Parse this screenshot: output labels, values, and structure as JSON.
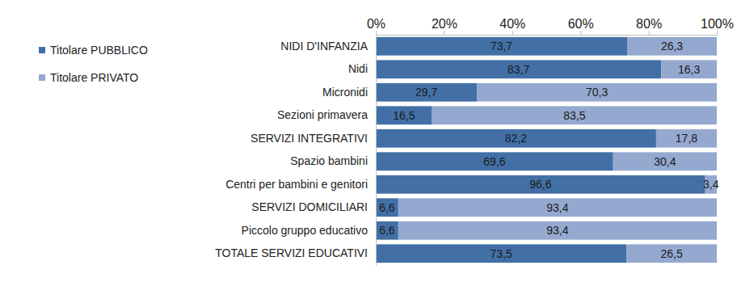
{
  "chart_data": {
    "type": "bar",
    "orientation": "horizontal",
    "stacked": true,
    "data_labels": true,
    "legend": "top-left",
    "grid": false,
    "categories": [
      "NIDI D'INFANZIA",
      "Nidi",
      "Micronidi",
      "Sezioni primavera",
      "SERVIZI INTEGRATIVI",
      "Spazio bambini",
      "Centri per bambini e genitori",
      "SERVIZI DOMICILIARI",
      "Piccolo gruppo educativo",
      "TOTALE SERVIZI EDUCATIVI"
    ],
    "series": [
      {
        "name": "Titolare PUBBLICO",
        "color": "#4270a6",
        "values": [
          73.7,
          83.7,
          29.7,
          16.5,
          82.2,
          69.6,
          96.6,
          6.6,
          6.6,
          73.5
        ],
        "value_labels": [
          "73,7",
          "83,7",
          "29,7",
          "16,5",
          "82,2",
          "69,6",
          "96,6",
          "6,6",
          "6,6",
          "73,5"
        ]
      },
      {
        "name": "Titolare PRIVATO",
        "color": "#95a9d0",
        "values": [
          26.3,
          16.3,
          70.3,
          83.5,
          17.8,
          30.4,
          3.4,
          93.4,
          93.4,
          26.5
        ],
        "value_labels": [
          "26,3",
          "16,3",
          "70,3",
          "83,5",
          "17,8",
          "30,4",
          "3,4",
          "93,4",
          "93,4",
          "26,5"
        ]
      }
    ],
    "xlim": [
      0,
      100
    ],
    "xticks": [
      {
        "value": 0,
        "label": "0%"
      },
      {
        "value": 20,
        "label": "20%"
      },
      {
        "value": 40,
        "label": "40%"
      },
      {
        "value": 60,
        "label": "60%"
      },
      {
        "value": 80,
        "label": "80%"
      },
      {
        "value": 100,
        "label": "100%"
      }
    ]
  }
}
